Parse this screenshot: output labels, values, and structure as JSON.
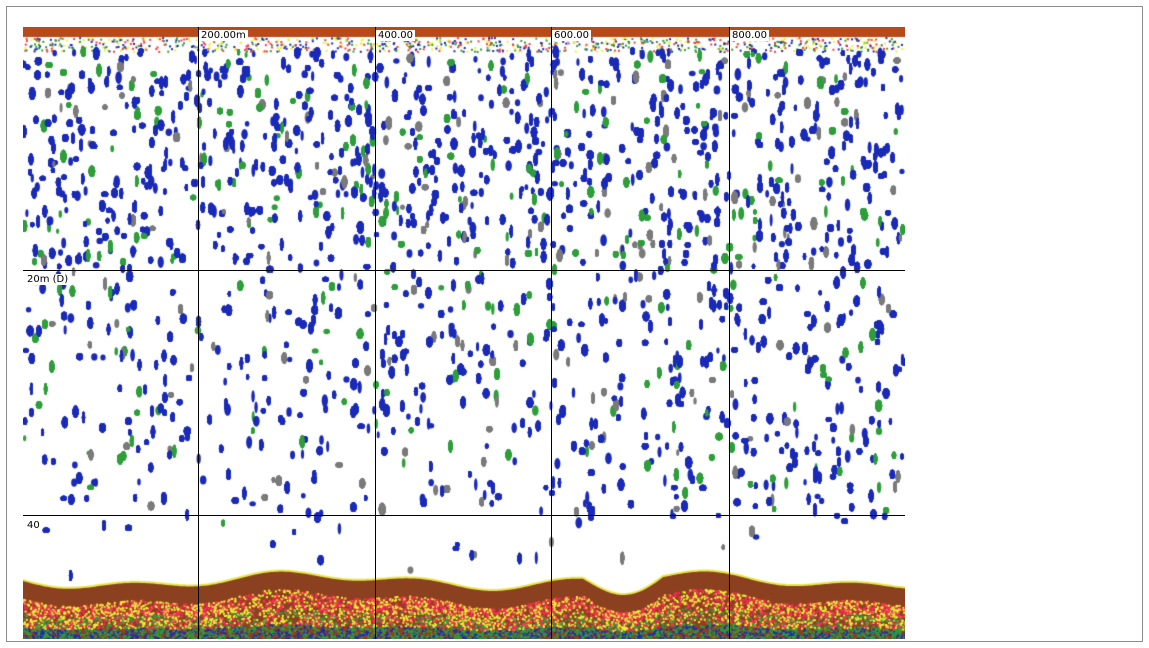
{
  "echogram": {
    "range_labels": [
      "200.00m",
      "400.00",
      "600.00",
      "800.00"
    ],
    "depth_labels": [
      "20m (D)",
      "40"
    ],
    "colors": {
      "surface_band": "#b84a1a",
      "seabed": "#8b4020",
      "seabed_line": "#e8e84a",
      "echo_blue": "#1a2ab8",
      "echo_green": "#2e9e3a",
      "echo_red": "#ff2a5a",
      "echo_yellow": "#f0f03a",
      "grid": "#000000"
    }
  }
}
